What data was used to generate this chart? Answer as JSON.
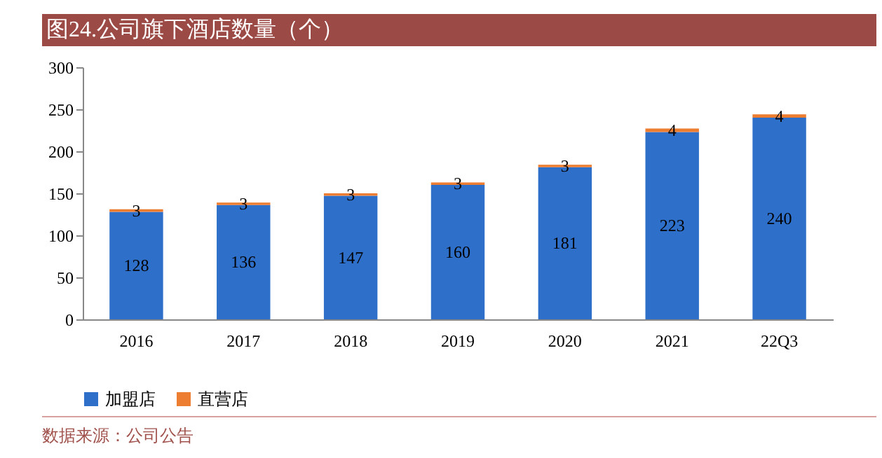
{
  "chart_data": {
    "type": "bar",
    "title": "图24.公司旗下酒店数量（个）",
    "categories": [
      "2016",
      "2017",
      "2018",
      "2019",
      "2020",
      "2021",
      "22Q3"
    ],
    "series": [
      {
        "name": "加盟店",
        "color": "#2e6fc9",
        "values": [
          128,
          136,
          147,
          160,
          181,
          223,
          240
        ]
      },
      {
        "name": "直营店",
        "color": "#ed7d31",
        "values": [
          3,
          3,
          3,
          3,
          3,
          4,
          4
        ]
      }
    ],
    "stacked": true,
    "ylim": [
      0,
      300
    ],
    "yticks": [
      0,
      50,
      100,
      150,
      200,
      250,
      300
    ],
    "data_labels": true,
    "legend": "bottom",
    "grid": false,
    "annotations": [
      "数据来源：公司公告"
    ]
  }
}
